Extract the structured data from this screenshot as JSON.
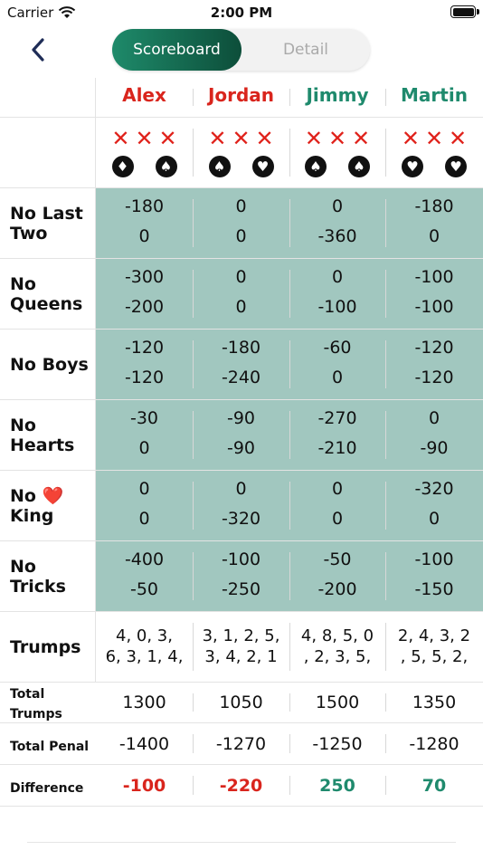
{
  "status": {
    "carrier": "Carrier",
    "time": "2:00 PM"
  },
  "tabs": {
    "scoreboard": "Scoreboard",
    "detail": "Detail"
  },
  "players": [
    {
      "name": "Alex",
      "color": "#d9251d"
    },
    {
      "name": "Jordan",
      "color": "#d9251d"
    },
    {
      "name": "Jimmy",
      "color": "#1f8a6d"
    },
    {
      "name": "Martin",
      "color": "#1f8a6d"
    }
  ],
  "marks": [
    {
      "x": "✕",
      "suits": [
        "♦",
        "♠"
      ]
    },
    {
      "x": "✕",
      "suits": [
        "♠",
        "♥"
      ]
    },
    {
      "x": "✕",
      "suits": [
        "♠",
        "♠"
      ]
    },
    {
      "x": "✕",
      "suits": [
        "♥",
        "♥"
      ]
    }
  ],
  "rounds": [
    {
      "label": "No Last Two",
      "values": [
        [
          "-180",
          "0"
        ],
        [
          "0",
          "0"
        ],
        [
          "0",
          "-360"
        ],
        [
          "-180",
          "0"
        ]
      ]
    },
    {
      "label": "No Queens",
      "values": [
        [
          "-300",
          "-200"
        ],
        [
          "0",
          "0"
        ],
        [
          "0",
          "-100"
        ],
        [
          "-100",
          "-100"
        ]
      ]
    },
    {
      "label": "No Boys",
      "values": [
        [
          "-120",
          "-120"
        ],
        [
          "-180",
          "-240"
        ],
        [
          "-60",
          "0"
        ],
        [
          "-120",
          "-120"
        ]
      ]
    },
    {
      "label": "No Hearts",
      "values": [
        [
          "-30",
          "0"
        ],
        [
          "-90",
          "-90"
        ],
        [
          "-270",
          "-210"
        ],
        [
          "0",
          "-90"
        ]
      ]
    },
    {
      "label": "No ❤️ King",
      "values": [
        [
          "0",
          "0"
        ],
        [
          "0",
          "-320"
        ],
        [
          "0",
          "0"
        ],
        [
          "-320",
          "0"
        ]
      ]
    },
    {
      "label": "No Tricks",
      "values": [
        [
          "-400",
          "-50"
        ],
        [
          "-100",
          "-250"
        ],
        [
          "-50",
          "-200"
        ],
        [
          "-100",
          "-150"
        ]
      ]
    }
  ],
  "trumps": {
    "label": "Trumps",
    "values": [
      [
        "4, 0, 3,",
        "6, 3, 1, 4,"
      ],
      [
        "3, 1, 2, 5,",
        "3, 4, 2, 1"
      ],
      [
        "4, 8, 5, 0",
        ", 2, 3, 5,"
      ],
      [
        "2, 4, 3, 2",
        ", 5, 5, 2,"
      ]
    ]
  },
  "totals": [
    {
      "label": "Total Trumps",
      "values": [
        "1300",
        "1050",
        "1500",
        "1350"
      ]
    },
    {
      "label": "Total Penal",
      "values": [
        "-1400",
        "-1270",
        "-1250",
        "-1280"
      ]
    },
    {
      "label": "Difference",
      "values": [
        "-100",
        "-220",
        "250",
        "70"
      ]
    }
  ]
}
